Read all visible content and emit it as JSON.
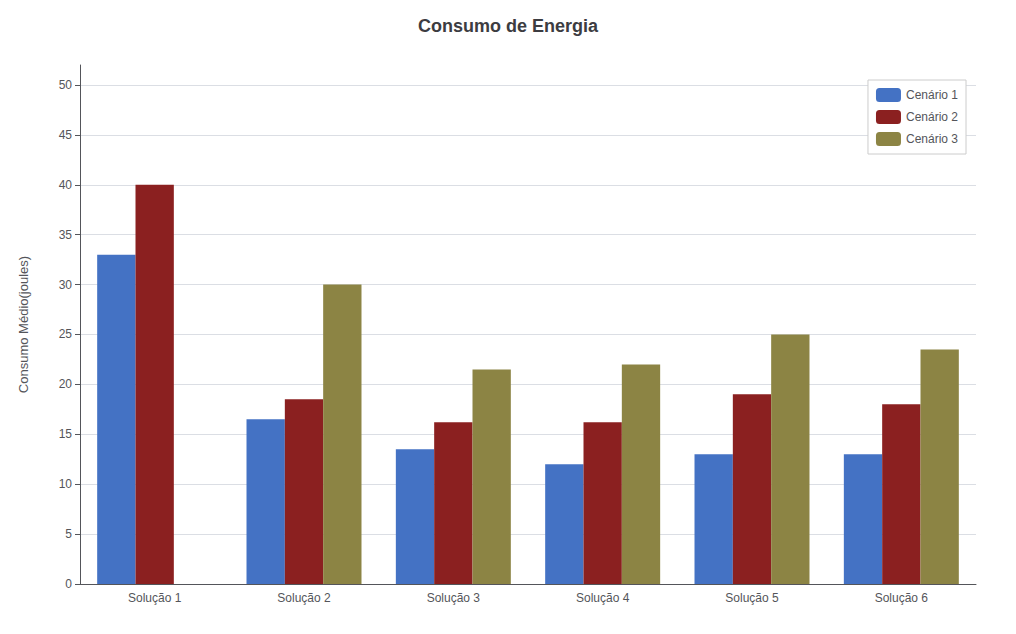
{
  "chart_data": {
    "type": "bar",
    "title": "Consumo de Energia",
    "ylabel": "Consumo Médio(joules)",
    "categories": [
      "Solução 1",
      "Solução 2",
      "Solução 3",
      "Solução 4",
      "Solução 5",
      "Solução 6"
    ],
    "series": [
      {
        "name": "Cenário 1",
        "color": "#4472C4",
        "values": [
          33,
          16.5,
          13.5,
          12,
          13,
          13
        ]
      },
      {
        "name": "Cenário 2",
        "color": "#8B2020",
        "values": [
          40,
          18.5,
          16.2,
          16.2,
          19,
          18
        ]
      },
      {
        "name": "Cenário 3",
        "color": "#8C8444",
        "values": [
          0,
          30,
          21.5,
          22,
          25,
          23.5
        ]
      }
    ],
    "ylim": [
      0,
      52
    ],
    "yticks": [
      0,
      5,
      10,
      15,
      20,
      25,
      30,
      35,
      40,
      45,
      50
    ],
    "grid": true,
    "legend": "upper right"
  }
}
